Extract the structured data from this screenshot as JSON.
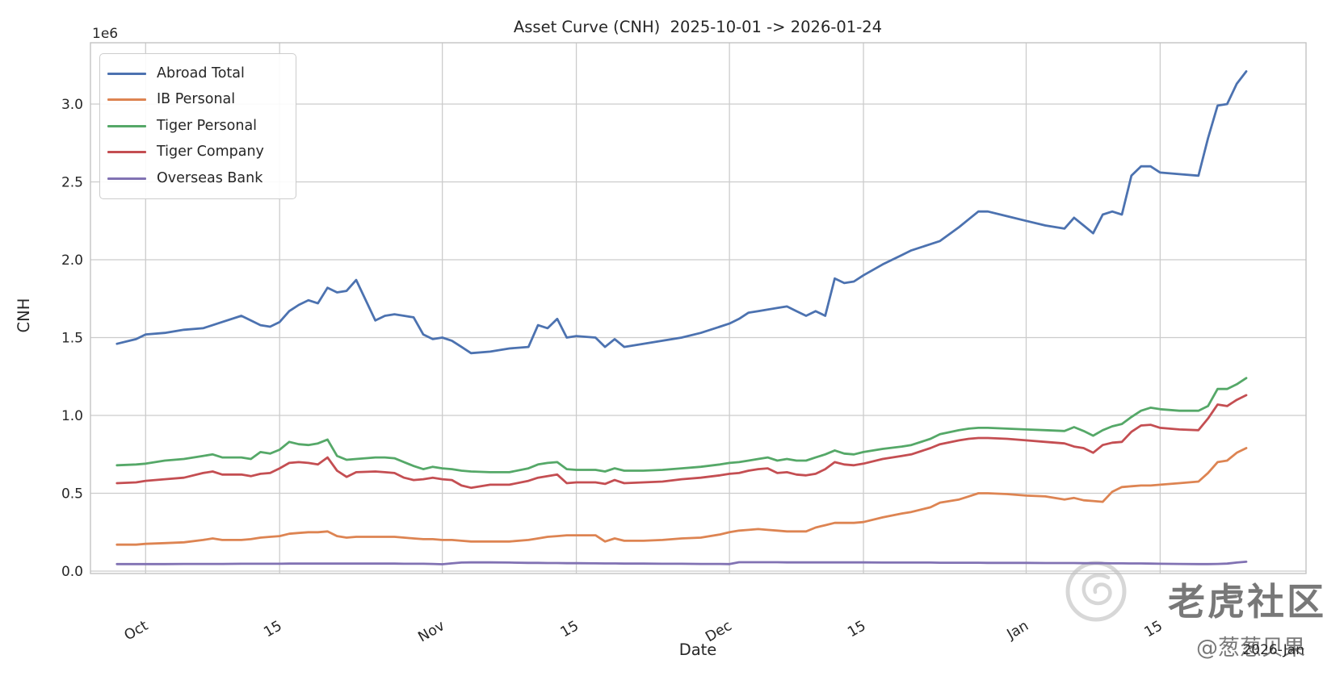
{
  "title": "Asset Curve (CNH)  2025-10-01 -> 2026-01-24",
  "watermark": {
    "logo_icon": "tiger-community-logo",
    "community_name": "老虎社区",
    "user_handle": "@葱葱贝果"
  },
  "chart_data": {
    "type": "line",
    "title": "Asset Curve (CNH)  2025-10-01 -> 2026-01-24",
    "xlabel": "Date",
    "ylabel": "CNH",
    "y_offset_label": "1e6",
    "x_offset_label": "2026-Jan",
    "date_range": [
      "2025-10-01",
      "2026-01-24"
    ],
    "grid": true,
    "legend_position": "upper left",
    "ylim_1e6": [
      -0.016,
      3.39
    ],
    "xlim_days_from_oct1": [
      -5.8,
      121.2
    ],
    "y_ticks": [
      "0.0",
      "0.5",
      "1.0",
      "1.5",
      "2.0",
      "2.5",
      "3.0"
    ],
    "y_tick_values_1e6": [
      0.0,
      0.5,
      1.0,
      1.5,
      2.0,
      2.5,
      3.0
    ],
    "x_ticks": [
      {
        "day": 0,
        "label": "Oct"
      },
      {
        "day": 14,
        "label": "15"
      },
      {
        "day": 31,
        "label": "Nov"
      },
      {
        "day": 45,
        "label": "15"
      },
      {
        "day": 61,
        "label": "Dec"
      },
      {
        "day": 75,
        "label": "15"
      },
      {
        "day": 92,
        "label": "Jan"
      },
      {
        "day": 106,
        "label": "15"
      }
    ],
    "x_days_from_oct1": [
      -3,
      -1,
      0,
      2,
      4,
      6,
      7,
      8,
      10,
      11,
      12,
      13,
      14,
      15,
      16,
      17,
      18,
      19,
      20,
      21,
      22,
      24,
      25,
      26,
      27,
      28,
      29,
      30,
      31,
      32,
      33,
      34,
      36,
      38,
      40,
      41,
      42,
      43,
      44,
      45,
      47,
      48,
      49,
      50,
      52,
      54,
      56,
      58,
      60,
      61,
      62,
      63,
      64,
      65,
      66,
      67,
      68,
      69,
      70,
      71,
      72,
      73,
      74,
      75,
      77,
      79,
      80,
      82,
      83,
      85,
      86,
      87,
      88,
      90,
      92,
      94,
      96,
      97,
      98,
      99,
      100,
      101,
      102,
      103,
      104,
      105,
      106,
      108,
      110,
      111,
      112,
      113,
      114,
      115
    ],
    "series": [
      {
        "name": "Abroad Total",
        "color": "#4C72B0",
        "values_1e6": [
          1.46,
          1.49,
          1.52,
          1.53,
          1.55,
          1.56,
          1.58,
          1.6,
          1.64,
          1.61,
          1.58,
          1.57,
          1.6,
          1.67,
          1.71,
          1.74,
          1.72,
          1.82,
          1.79,
          1.8,
          1.87,
          1.61,
          1.64,
          1.65,
          1.64,
          1.63,
          1.52,
          1.49,
          1.5,
          1.48,
          1.44,
          1.4,
          1.41,
          1.43,
          1.44,
          1.58,
          1.56,
          1.62,
          1.5,
          1.51,
          1.5,
          1.44,
          1.49,
          1.44,
          1.46,
          1.48,
          1.5,
          1.53,
          1.57,
          1.59,
          1.62,
          1.66,
          1.67,
          1.68,
          1.69,
          1.7,
          1.67,
          1.64,
          1.67,
          1.64,
          1.88,
          1.85,
          1.86,
          1.9,
          1.97,
          2.03,
          2.06,
          2.1,
          2.12,
          2.21,
          2.26,
          2.31,
          2.31,
          2.28,
          2.25,
          2.22,
          2.2,
          2.27,
          2.22,
          2.17,
          2.29,
          2.31,
          2.29,
          2.54,
          2.6,
          2.6,
          2.56,
          2.55,
          2.54,
          2.78,
          2.99,
          3.0,
          3.13,
          3.21
        ]
      },
      {
        "name": "IB Personal",
        "color": "#DD8452",
        "values_1e6": [
          0.17,
          0.17,
          0.175,
          0.18,
          0.185,
          0.2,
          0.21,
          0.2,
          0.2,
          0.205,
          0.215,
          0.22,
          0.225,
          0.24,
          0.245,
          0.25,
          0.25,
          0.255,
          0.225,
          0.215,
          0.22,
          0.22,
          0.22,
          0.22,
          0.215,
          0.21,
          0.205,
          0.205,
          0.2,
          0.2,
          0.195,
          0.19,
          0.19,
          0.19,
          0.2,
          0.21,
          0.22,
          0.225,
          0.23,
          0.23,
          0.23,
          0.19,
          0.21,
          0.195,
          0.195,
          0.2,
          0.21,
          0.215,
          0.235,
          0.25,
          0.26,
          0.265,
          0.27,
          0.265,
          0.26,
          0.255,
          0.255,
          0.255,
          0.28,
          0.295,
          0.31,
          0.31,
          0.31,
          0.315,
          0.345,
          0.37,
          0.38,
          0.41,
          0.44,
          0.46,
          0.48,
          0.5,
          0.5,
          0.495,
          0.485,
          0.48,
          0.46,
          0.47,
          0.455,
          0.45,
          0.445,
          0.51,
          0.54,
          0.545,
          0.55,
          0.55,
          0.555,
          0.565,
          0.575,
          0.63,
          0.7,
          0.71,
          0.76,
          0.79
        ]
      },
      {
        "name": "Tiger Personal",
        "color": "#55A868",
        "values_1e6": [
          0.68,
          0.685,
          0.69,
          0.71,
          0.72,
          0.74,
          0.75,
          0.73,
          0.73,
          0.72,
          0.765,
          0.755,
          0.78,
          0.83,
          0.815,
          0.81,
          0.82,
          0.845,
          0.74,
          0.715,
          0.72,
          0.73,
          0.73,
          0.725,
          0.7,
          0.675,
          0.655,
          0.67,
          0.66,
          0.655,
          0.645,
          0.64,
          0.635,
          0.635,
          0.66,
          0.685,
          0.695,
          0.7,
          0.655,
          0.65,
          0.65,
          0.64,
          0.66,
          0.645,
          0.645,
          0.65,
          0.66,
          0.67,
          0.685,
          0.695,
          0.7,
          0.71,
          0.72,
          0.73,
          0.71,
          0.72,
          0.71,
          0.71,
          0.73,
          0.75,
          0.775,
          0.755,
          0.75,
          0.765,
          0.785,
          0.8,
          0.81,
          0.85,
          0.88,
          0.905,
          0.915,
          0.92,
          0.92,
          0.915,
          0.91,
          0.905,
          0.9,
          0.925,
          0.9,
          0.87,
          0.905,
          0.93,
          0.945,
          0.99,
          1.03,
          1.05,
          1.04,
          1.03,
          1.03,
          1.06,
          1.17,
          1.17,
          1.2,
          1.24
        ]
      },
      {
        "name": "Tiger Company",
        "color": "#C44E52",
        "values_1e6": [
          0.565,
          0.57,
          0.58,
          0.59,
          0.6,
          0.63,
          0.64,
          0.62,
          0.62,
          0.61,
          0.625,
          0.63,
          0.66,
          0.695,
          0.7,
          0.695,
          0.685,
          0.73,
          0.645,
          0.605,
          0.635,
          0.64,
          0.635,
          0.63,
          0.6,
          0.585,
          0.59,
          0.6,
          0.59,
          0.585,
          0.55,
          0.535,
          0.555,
          0.555,
          0.58,
          0.6,
          0.61,
          0.62,
          0.565,
          0.57,
          0.57,
          0.56,
          0.585,
          0.565,
          0.57,
          0.575,
          0.59,
          0.6,
          0.615,
          0.625,
          0.63,
          0.645,
          0.655,
          0.66,
          0.63,
          0.635,
          0.62,
          0.615,
          0.625,
          0.655,
          0.7,
          0.685,
          0.68,
          0.69,
          0.72,
          0.74,
          0.75,
          0.79,
          0.815,
          0.84,
          0.85,
          0.855,
          0.855,
          0.85,
          0.84,
          0.83,
          0.82,
          0.8,
          0.79,
          0.76,
          0.81,
          0.825,
          0.83,
          0.895,
          0.935,
          0.94,
          0.92,
          0.91,
          0.905,
          0.98,
          1.07,
          1.06,
          1.1,
          1.13
        ]
      },
      {
        "name": "Overseas Bank",
        "color": "#8172B3",
        "values_1e6": [
          0.045,
          0.045,
          0.045,
          0.045,
          0.046,
          0.046,
          0.046,
          0.046,
          0.047,
          0.047,
          0.047,
          0.047,
          0.047,
          0.048,
          0.048,
          0.048,
          0.048,
          0.048,
          0.048,
          0.048,
          0.048,
          0.048,
          0.048,
          0.048,
          0.047,
          0.047,
          0.047,
          0.046,
          0.044,
          0.05,
          0.055,
          0.056,
          0.056,
          0.055,
          0.053,
          0.053,
          0.052,
          0.052,
          0.051,
          0.051,
          0.05,
          0.049,
          0.049,
          0.048,
          0.048,
          0.047,
          0.047,
          0.046,
          0.046,
          0.045,
          0.057,
          0.057,
          0.057,
          0.057,
          0.057,
          0.056,
          0.056,
          0.056,
          0.056,
          0.056,
          0.056,
          0.056,
          0.056,
          0.056,
          0.055,
          0.055,
          0.055,
          0.055,
          0.054,
          0.054,
          0.054,
          0.054,
          0.053,
          0.053,
          0.053,
          0.052,
          0.052,
          0.052,
          0.051,
          0.051,
          0.051,
          0.05,
          0.05,
          0.049,
          0.049,
          0.048,
          0.047,
          0.046,
          0.045,
          0.045,
          0.046,
          0.048,
          0.055,
          0.06
        ]
      }
    ],
    "colors": {
      "grid": "#cccccc",
      "spine": "#c3c3c3",
      "text": "#262626",
      "watermark": "#c6c6c6",
      "background": "#ffffff"
    }
  }
}
